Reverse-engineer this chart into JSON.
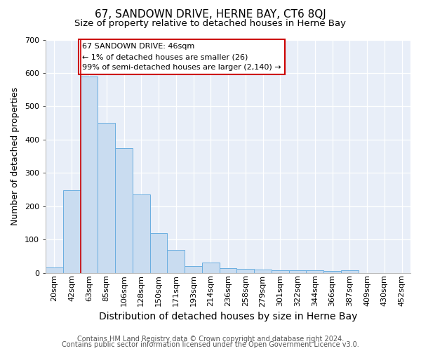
{
  "title": "67, SANDOWN DRIVE, HERNE BAY, CT6 8QJ",
  "subtitle": "Size of property relative to detached houses in Herne Bay",
  "xlabel": "Distribution of detached houses by size in Herne Bay",
  "ylabel": "Number of detached properties",
  "categories": [
    "20sqm",
    "42sqm",
    "63sqm",
    "85sqm",
    "106sqm",
    "128sqm",
    "150sqm",
    "171sqm",
    "193sqm",
    "214sqm",
    "236sqm",
    "258sqm",
    "279sqm",
    "301sqm",
    "322sqm",
    "344sqm",
    "366sqm",
    "387sqm",
    "409sqm",
    "430sqm",
    "452sqm"
  ],
  "bar_values": [
    17,
    248,
    590,
    450,
    375,
    235,
    120,
    68,
    21,
    30,
    13,
    12,
    9,
    8,
    7,
    7,
    6,
    8,
    0,
    0,
    0
  ],
  "bar_color": "#c9dcf0",
  "bar_edge_color": "#6aaee0",
  "vline_x": 1.5,
  "vline_color": "#cc0000",
  "ylim": [
    0,
    700
  ],
  "annotation_text": "67 SANDOWN DRIVE: 46sqm\n← 1% of detached houses are smaller (26)\n99% of semi-detached houses are larger (2,140) →",
  "annotation_box_color": "#ffffff",
  "annotation_box_edge": "#cc0000",
  "footer1": "Contains HM Land Registry data © Crown copyright and database right 2024.",
  "footer2": "Contains public sector information licensed under the Open Government Licence v3.0.",
  "figure_background": "#ffffff",
  "plot_background": "#e8eef8",
  "grid_color": "#ffffff",
  "title_fontsize": 11,
  "subtitle_fontsize": 9.5,
  "xlabel_fontsize": 10,
  "ylabel_fontsize": 9,
  "tick_fontsize": 8,
  "annot_fontsize": 8,
  "footer_fontsize": 7
}
